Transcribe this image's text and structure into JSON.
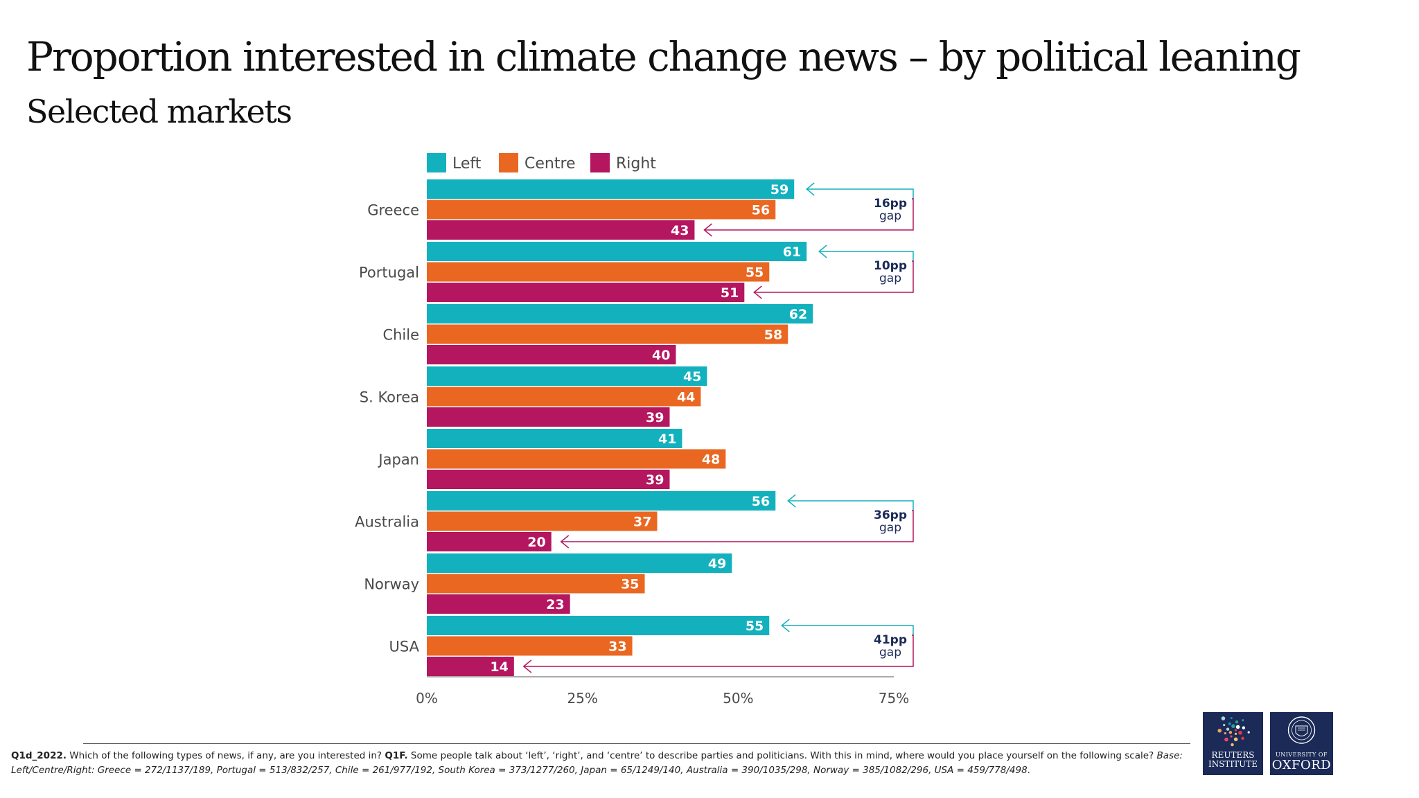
{
  "page": {
    "title": "Proportion interested in climate change news – by political leaning",
    "subtitle": "Selected markets"
  },
  "colors": {
    "left": "#13b1be",
    "centre": "#ea6722",
    "right": "#b4165f",
    "text": "#4a4a4a",
    "bracket": "#b4165f",
    "bracket_left": "#13b1be",
    "navy": "#1b2a57"
  },
  "chart_data": {
    "type": "bar",
    "orientation": "horizontal",
    "categories": [
      "Greece",
      "Portugal",
      "Chile",
      "S. Korea",
      "Japan",
      "Australia",
      "Norway",
      "USA"
    ],
    "series": [
      {
        "name": "Left",
        "values": [
          59,
          61,
          62,
          45,
          41,
          56,
          49,
          55
        ]
      },
      {
        "name": "Centre",
        "values": [
          56,
          55,
          58,
          44,
          48,
          37,
          35,
          33
        ]
      },
      {
        "name": "Right",
        "values": [
          43,
          51,
          40,
          39,
          39,
          20,
          23,
          14
        ]
      }
    ],
    "xlim": [
      0,
      75
    ],
    "xticks": [
      "0%",
      "25%",
      "50%",
      "75%"
    ],
    "legend_position": "top",
    "grid": false,
    "annotations": [
      {
        "category": "Greece",
        "line1": "16pp",
        "line2": "gap"
      },
      {
        "category": "Portugal",
        "line1": "10pp",
        "line2": "gap"
      },
      {
        "category": "Australia",
        "line1": "36pp",
        "line2": "gap"
      },
      {
        "category": "USA",
        "line1": "41pp",
        "line2": "gap"
      }
    ]
  },
  "footnote": {
    "q1_label": "Q1d_2022.",
    "q1_text": " Which of the following types of news, if any, are you interested in? ",
    "q2_label": "Q1F.",
    "q2_text": " Some people talk about ‘left’, ‘right’, and ‘centre’ to describe parties and politicians. With this in mind, where would you place yourself on the following scale? ",
    "base": "Base: Left/Centre/Right: Greece = 272/1137/189, Portugal = 513/832/257, Chile = 261/977/192, South Korea = 373/1277/260, Japan = 65/1249/140, Australia = 390/1035/298, Norway = 385/1082/296, USA = 459/778/498",
    "end": "."
  },
  "logos": {
    "reuters_line1": "REUTERS",
    "reuters_line2": "INSTITUTE",
    "oxford_line1": "UNIVERSITY OF",
    "oxford_line2": "OXFORD"
  }
}
